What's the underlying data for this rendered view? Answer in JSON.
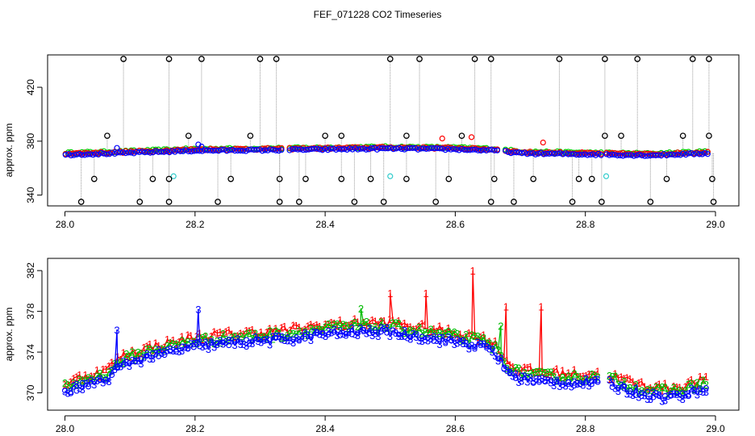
{
  "title": "FEF_071228  CO2 Timeseries",
  "colors": {
    "s1": "#ff0000",
    "s2": "#00cc00",
    "s3": "#0000ff",
    "black": "#000000",
    "cyan": "#33cccc",
    "line": "#999999"
  },
  "chart_data": [
    {
      "type": "scatter",
      "panel": "top",
      "title": "",
      "xlabel": "",
      "ylabel": "approx. ppm",
      "xlim": [
        28.0,
        29.0
      ],
      "ylim": [
        332,
        444
      ],
      "x_ticks": [
        "28.0",
        "28.2",
        "28.4",
        "28.6",
        "28.8",
        "29.0"
      ],
      "y_ticks": [
        "340",
        "380",
        "420"
      ],
      "x_tick_values": [
        28.0,
        28.2,
        28.4,
        28.6,
        28.8,
        29.0
      ],
      "y_tick_values": [
        340,
        380,
        420
      ],
      "spike_high": [
        28.09,
        28.16,
        28.21,
        28.3,
        28.325,
        28.5,
        28.545,
        28.63,
        28.655,
        28.76,
        28.83,
        28.88,
        28.965,
        28.99
      ],
      "spike_mid_high": [
        28.065,
        28.19,
        28.285,
        28.4,
        28.425,
        28.525,
        28.61,
        28.83,
        28.855,
        28.95,
        28.99
      ],
      "spike_mid_low": [
        28.045,
        28.135,
        28.16,
        28.255,
        28.33,
        28.37,
        28.425,
        28.47,
        28.525,
        28.59,
        28.66,
        28.72,
        28.79,
        28.81,
        28.925,
        28.995
      ],
      "spike_low": [
        28.025,
        28.115,
        28.16,
        28.235,
        28.33,
        28.36,
        28.445,
        28.49,
        28.57,
        28.655,
        28.69,
        28.78,
        28.825,
        28.9,
        28.997
      ],
      "cyan_points": [
        {
          "x": 28.167,
          "y": 354
        },
        {
          "x": 28.5,
          "y": 354
        },
        {
          "x": 28.832,
          "y": 354
        }
      ],
      "red_outliers": [
        {
          "x": 28.58,
          "y": 382
        },
        {
          "x": 28.625,
          "y": 383
        },
        {
          "x": 28.735,
          "y": 379
        }
      ],
      "gaps": [
        [
          28.335,
          28.345
        ],
        [
          28.665,
          28.675
        ],
        [
          28.825,
          28.832
        ]
      ]
    },
    {
      "type": "line",
      "panel": "bottom",
      "title": "",
      "xlabel": "",
      "ylabel": "approx. ppm",
      "xlim": [
        28.0,
        29.0
      ],
      "ylim": [
        368.3,
        383.2
      ],
      "x_ticks": [
        "28.0",
        "28.2",
        "28.4",
        "28.6",
        "28.8",
        "29.0"
      ],
      "y_ticks": [
        "370",
        "374",
        "378",
        "382"
      ],
      "x_tick_values": [
        28.0,
        28.2,
        28.4,
        28.6,
        28.8,
        29.0
      ],
      "y_tick_values": [
        370,
        374,
        378,
        382
      ],
      "series": [
        {
          "name": "1",
          "color": "#ff0000",
          "offset": 0.9,
          "spikes": [
            {
              "x": 28.5,
              "y": 379.8
            },
            {
              "x": 28.555,
              "y": 379.8
            },
            {
              "x": 28.627,
              "y": 382.0
            },
            {
              "x": 28.678,
              "y": 378.5
            },
            {
              "x": 28.732,
              "y": 378.5
            }
          ]
        },
        {
          "name": "2",
          "color": "#00bb00",
          "offset": 0.55,
          "spikes": [
            {
              "x": 28.455,
              "y": 378.3
            },
            {
              "x": 28.67,
              "y": 376.6
            }
          ]
        },
        {
          "name": "3",
          "color": "#0000ff",
          "offset": 0.0,
          "spikes": [
            {
              "x": 28.08,
              "y": 376.2
            },
            {
              "x": 28.205,
              "y": 378.2
            }
          ]
        }
      ],
      "baseline_anchors": {
        "x": [
          28.0,
          28.03,
          28.06,
          28.09,
          28.13,
          28.2,
          28.27,
          28.33,
          28.4,
          28.45,
          28.5,
          28.55,
          28.6,
          28.64,
          28.66,
          28.675,
          28.69,
          28.72,
          28.78,
          28.82,
          28.835,
          28.88,
          28.92,
          28.95,
          28.985
        ],
        "y": [
          370.0,
          370.8,
          371.2,
          372.8,
          373.6,
          374.6,
          375.0,
          375.2,
          375.8,
          376.0,
          376.0,
          375.5,
          375.0,
          374.6,
          374.0,
          372.6,
          371.6,
          371.2,
          371.0,
          371.0,
          370.9,
          370.0,
          369.6,
          369.8,
          370.5
        ]
      },
      "gaps": [
        [
          28.822,
          28.835
        ]
      ]
    }
  ]
}
